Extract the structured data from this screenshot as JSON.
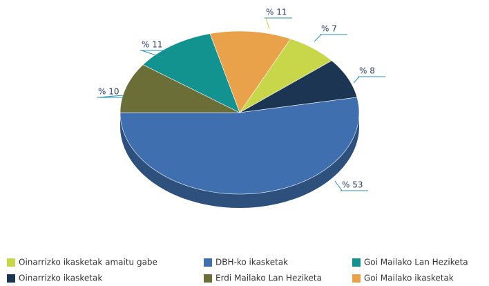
{
  "chart_data": {
    "type": "pie",
    "categories": [
      "Goi Mailako ikasketak",
      "Oinarrizko ikasketak amaitu gabe",
      "Oinarrizko ikasketak",
      "DBH-ko ikasketak",
      "Erdi Mailako Lan Heziketa",
      "Goi Mailako Lan Heziketa"
    ],
    "values": [
      11,
      7,
      8,
      53,
      10,
      11
    ],
    "value_labels": [
      "% 11",
      "% 7",
      "% 8",
      "% 53",
      "% 10",
      "% 11"
    ],
    "colors": [
      "#e9a24a",
      "#c8d64a",
      "#1c3552",
      "#3f6fae",
      "#6b6e37",
      "#12938f"
    ]
  }
}
